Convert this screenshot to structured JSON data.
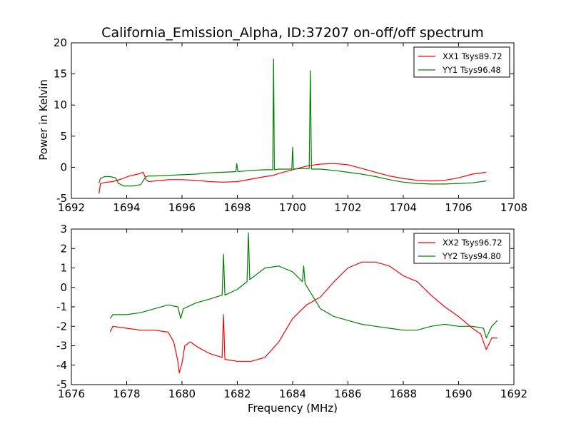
{
  "figure": {
    "title": "California_Emission_Alpha, ID:37207 on-off/off spectrum",
    "xlabel": "Frequency (MHz)",
    "ylabel": "Power in Kelvin"
  },
  "chart_data": [
    {
      "type": "line",
      "xlim": [
        1692,
        1708
      ],
      "ylim": [
        -5,
        20
      ],
      "xticks": [
        1692,
        1694,
        1696,
        1698,
        1700,
        1702,
        1704,
        1706,
        1708
      ],
      "yticks": [
        -5,
        0,
        5,
        10,
        15,
        20
      ],
      "legend_position": "top-right",
      "grid": false,
      "series": [
        {
          "name": "XX1 Tsys89.72",
          "color": "#ff0000",
          "x": [
            1693.0,
            1693.05,
            1693.15,
            1693.3,
            1693.5,
            1693.8,
            1694.1,
            1694.4,
            1694.6,
            1694.7,
            1694.8,
            1695.0,
            1695.5,
            1696.0,
            1696.5,
            1697.0,
            1697.5,
            1698.0,
            1698.5,
            1699.0,
            1699.3,
            1699.5,
            1700.0,
            1700.5,
            1701.0,
            1701.5,
            1702.0,
            1702.5,
            1703.0,
            1703.5,
            1704.0,
            1704.5,
            1705.0,
            1705.5,
            1706.0,
            1706.5,
            1707.0
          ],
          "y": [
            -4.2,
            -2.6,
            -2.5,
            -2.4,
            -2.3,
            -1.9,
            -1.4,
            -1.1,
            -0.8,
            -2.0,
            -2.3,
            -2.2,
            -2.0,
            -2.0,
            -2.1,
            -2.3,
            -2.4,
            -2.3,
            -1.9,
            -1.5,
            -1.3,
            -1.0,
            -0.4,
            0.2,
            0.5,
            0.6,
            0.4,
            -0.2,
            -0.8,
            -1.4,
            -1.8,
            -2.1,
            -2.2,
            -2.1,
            -1.7,
            -1.1,
            -0.8
          ]
        },
        {
          "name": "YY1 Tsys96.48",
          "color": "#008000",
          "x": [
            1693.0,
            1693.05,
            1693.2,
            1693.4,
            1693.6,
            1693.7,
            1693.9,
            1694.2,
            1694.5,
            1694.7,
            1694.8,
            1695.0,
            1695.5,
            1696.0,
            1696.5,
            1697.0,
            1697.5,
            1697.95,
            1697.98,
            1698.02,
            1698.5,
            1699.0,
            1699.28,
            1699.31,
            1699.34,
            1699.5,
            1699.97,
            1700.0,
            1700.03,
            1700.3,
            1700.6,
            1700.64,
            1700.68,
            1701.0,
            1701.5,
            1702.0,
            1702.5,
            1703.0,
            1703.5,
            1704.0,
            1704.5,
            1705.0,
            1705.5,
            1706.0,
            1706.5,
            1707.0
          ],
          "y": [
            -2.5,
            -1.8,
            -1.5,
            -1.5,
            -1.7,
            -2.6,
            -3.0,
            -3.0,
            -2.8,
            -1.5,
            -1.4,
            -1.4,
            -1.3,
            -1.2,
            -1.1,
            -0.9,
            -0.8,
            -0.7,
            0.6,
            -0.7,
            -0.5,
            -0.4,
            -0.4,
            17.4,
            -0.4,
            -0.3,
            -0.3,
            3.2,
            -0.3,
            -0.2,
            -0.2,
            15.5,
            -0.3,
            -0.3,
            -0.5,
            -0.8,
            -1.1,
            -1.5,
            -2.0,
            -2.4,
            -2.6,
            -2.7,
            -2.7,
            -2.6,
            -2.5,
            -2.2
          ]
        }
      ]
    },
    {
      "type": "line",
      "xlim": [
        1676,
        1692
      ],
      "ylim": [
        -5,
        3
      ],
      "xticks": [
        1676,
        1678,
        1680,
        1682,
        1684,
        1686,
        1688,
        1690,
        1692
      ],
      "yticks": [
        -5,
        -4,
        -3,
        -2,
        -1,
        0,
        1,
        2,
        3
      ],
      "legend_position": "top-right",
      "grid": false,
      "series": [
        {
          "name": "XX2 Tsys96.72",
          "color": "#ff0000",
          "x": [
            1677.4,
            1677.5,
            1678.0,
            1678.5,
            1679.0,
            1679.5,
            1679.7,
            1679.85,
            1679.9,
            1680.0,
            1680.1,
            1680.3,
            1680.6,
            1681.0,
            1681.45,
            1681.5,
            1681.55,
            1682.0,
            1682.5,
            1683.0,
            1683.5,
            1684.0,
            1684.5,
            1685.0,
            1685.5,
            1686.0,
            1686.5,
            1687.0,
            1687.5,
            1688.0,
            1688.5,
            1689.0,
            1689.5,
            1690.0,
            1690.5,
            1690.8,
            1691.0,
            1691.2,
            1691.4
          ],
          "y": [
            -2.3,
            -2.0,
            -2.1,
            -2.2,
            -2.2,
            -2.3,
            -2.8,
            -3.8,
            -4.4,
            -3.9,
            -3.0,
            -2.8,
            -3.1,
            -3.4,
            -3.6,
            -1.4,
            -3.7,
            -3.8,
            -3.8,
            -3.6,
            -2.8,
            -1.6,
            -0.9,
            -0.5,
            0.3,
            1.0,
            1.3,
            1.3,
            1.1,
            0.6,
            0.3,
            -0.4,
            -1.0,
            -1.5,
            -2.1,
            -2.4,
            -3.2,
            -2.6,
            -2.6
          ]
        },
        {
          "name": "YY2 Tsys94.80",
          "color": "#008000",
          "x": [
            1677.4,
            1677.5,
            1678.0,
            1678.5,
            1679.0,
            1679.5,
            1679.85,
            1679.95,
            1680.05,
            1680.5,
            1681.0,
            1681.45,
            1681.5,
            1681.55,
            1682.0,
            1682.35,
            1682.4,
            1682.45,
            1683.0,
            1683.5,
            1684.0,
            1684.35,
            1684.4,
            1684.45,
            1685.0,
            1685.5,
            1686.0,
            1686.5,
            1687.0,
            1687.5,
            1688.0,
            1688.5,
            1689.0,
            1689.5,
            1690.0,
            1690.5,
            1690.9,
            1691.0,
            1691.2,
            1691.4
          ],
          "y": [
            -1.6,
            -1.4,
            -1.4,
            -1.3,
            -1.1,
            -0.9,
            -1.0,
            -1.6,
            -1.1,
            -0.8,
            -0.6,
            -0.4,
            1.7,
            -0.4,
            -0.1,
            0.3,
            2.8,
            0.4,
            1.0,
            1.1,
            0.8,
            0.3,
            1.1,
            0.2,
            -1.1,
            -1.5,
            -1.7,
            -1.9,
            -2.0,
            -2.1,
            -2.2,
            -2.2,
            -2.0,
            -1.9,
            -2.0,
            -2.0,
            -2.1,
            -2.6,
            -2.0,
            -1.7
          ]
        }
      ]
    }
  ]
}
